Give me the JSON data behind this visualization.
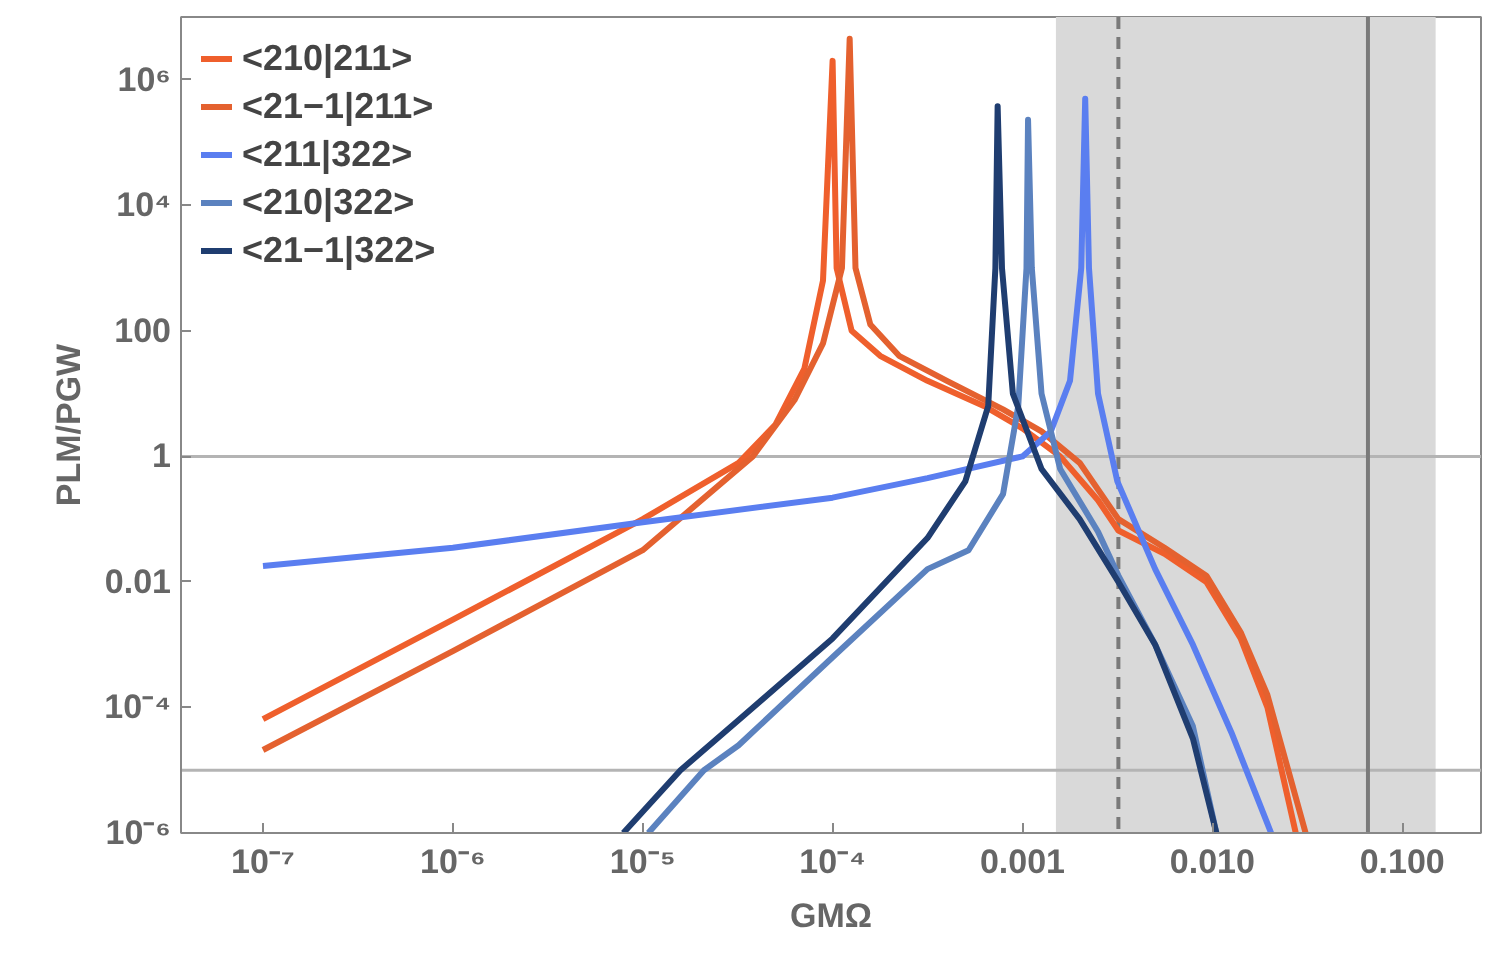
{
  "chart_data": {
    "type": "line",
    "xlabel": "GMΩ",
    "ylabel": "PLM/PGW",
    "log": "xy",
    "grid": false,
    "legend": "top left",
    "line_style": "solid",
    "marker": "none",
    "xlim": [
      3.7e-08,
      0.26
    ],
    "ylim": [
      1e-06,
      10000000.0
    ],
    "xticks": [
      {
        "value": 1e-07,
        "label": "10⁻⁷"
      },
      {
        "value": 1e-06,
        "label": "10⁻⁶"
      },
      {
        "value": 1e-05,
        "label": "10⁻⁵"
      },
      {
        "value": 0.0001,
        "label": "10⁻⁴"
      },
      {
        "value": 0.001,
        "label": "0.001"
      },
      {
        "value": 0.01,
        "label": "0.010"
      },
      {
        "value": 0.1,
        "label": "0.100"
      }
    ],
    "yticks": [
      {
        "value": 1e-06,
        "label": "10⁻⁶"
      },
      {
        "value": 0.0001,
        "label": "10⁻⁴"
      },
      0.01,
      1,
      100,
      {
        "value": 10000.0,
        "label": "10⁴"
      },
      {
        "value": 1000000.0,
        "label": "10⁶"
      }
    ],
    "bands": [
      {
        "axis": "x",
        "from": 0.0015,
        "to": 0.15,
        "color": "#d9d9d9"
      }
    ],
    "ref_lines": [
      {
        "axis": "y",
        "value": 1,
        "color": "#b4b4b4",
        "line_style": "solid"
      },
      {
        "axis": "y",
        "value": 1e-05,
        "color": "#b4b4b4",
        "line_style": "solid"
      },
      {
        "axis": "x",
        "value": 0.0032,
        "color": "#7a7a7a",
        "line_style": "dashed"
      },
      {
        "axis": "x",
        "value": 0.066,
        "color": "#7a7a7a",
        "line_style": "solid"
      }
    ],
    "series": [
      {
        "name": "<210|211>",
        "color": "#ef5f2c",
        "x": [
          1e-07,
          1e-06,
          1e-05,
          3.2e-05,
          5e-05,
          7.1e-05,
          8.9e-05,
          0.0001,
          0.000105,
          0.000126,
          0.000178,
          0.000316,
          0.00063,
          0.001,
          0.00158,
          0.0025,
          0.0032,
          0.0056,
          0.0093,
          0.0141,
          0.0195,
          0.0275
        ],
        "values": [
          6.5e-05,
          0.0025,
          0.1,
          0.79,
          3.2,
          25,
          630,
          2000000.0,
          1000,
          100,
          40,
          16,
          6.3,
          2.8,
          1,
          0.2,
          0.066,
          0.028,
          0.01,
          0.00126,
          0.0001,
          1e-06
        ]
      },
      {
        "name": "<21−1|211>",
        "color": "#e4612f",
        "x": [
          1e-07,
          1e-06,
          1e-05,
          3.8e-05,
          6.3e-05,
          8.9e-05,
          0.000112,
          0.000123,
          0.000132,
          0.000158,
          0.000224,
          0.0004,
          0.00079,
          0.00126,
          0.002,
          0.0032,
          0.0056,
          0.0093,
          0.0141,
          0.0195,
          0.031
        ],
        "values": [
          2.1e-05,
          0.00079,
          0.032,
          1,
          7.9,
          63,
          1000,
          4500000.0,
          1000,
          126,
          40,
          16,
          5.6,
          2.5,
          0.79,
          0.1,
          0.035,
          0.0126,
          0.00158,
          0.000158,
          1e-06
        ]
      },
      {
        "name": "<211|322>",
        "color": "#5a7ef0",
        "x": [
          1e-07,
          1e-06,
          1e-05,
          0.0001,
          0.000316,
          0.001,
          0.00141,
          0.00178,
          0.00204,
          0.00214,
          0.00224,
          0.0025,
          0.00316,
          0.005,
          0.0079,
          0.0126,
          0.0204
        ],
        "values": [
          0.018,
          0.035,
          0.089,
          0.22,
          0.45,
          1,
          2.5,
          16,
          1000,
          500000.0,
          1000,
          10,
          0.4,
          0.016,
          0.001,
          4e-05,
          1e-06
        ]
      },
      {
        "name": "<210|322>",
        "color": "#5b82bf",
        "x": [
          1.07e-05,
          2.1e-05,
          3.2e-05,
          0.0001,
          0.000316,
          0.00052,
          0.00079,
          0.00095,
          0.00105,
          0.00107,
          0.00112,
          0.00126,
          0.00158,
          0.0025,
          0.0032,
          0.005,
          0.0079,
          0.0105
        ],
        "values": [
          1e-06,
          1e-05,
          2.5e-05,
          0.00063,
          0.016,
          0.032,
          0.25,
          6.3,
          1000,
          230000.0,
          1000,
          10,
          0.63,
          0.063,
          0.0126,
          0.001,
          5e-05,
          1e-06
        ]
      },
      {
        "name": "<21−1|322>",
        "color": "#1f3d70",
        "x": [
          7.9e-06,
          1.58e-05,
          3.2e-05,
          0.0001,
          0.000316,
          0.0005,
          0.00066,
          0.00072,
          0.00074,
          0.00078,
          0.00089,
          0.00126,
          0.002,
          0.0032,
          0.005,
          0.0079,
          0.0105
        ],
        "values": [
          1e-06,
          1e-05,
          6.3e-05,
          0.00126,
          0.05,
          0.4,
          6.3,
          1000,
          380000.0,
          1000,
          10,
          0.63,
          0.1,
          0.01,
          0.001,
          3.2e-05,
          1e-06
        ]
      }
    ]
  }
}
